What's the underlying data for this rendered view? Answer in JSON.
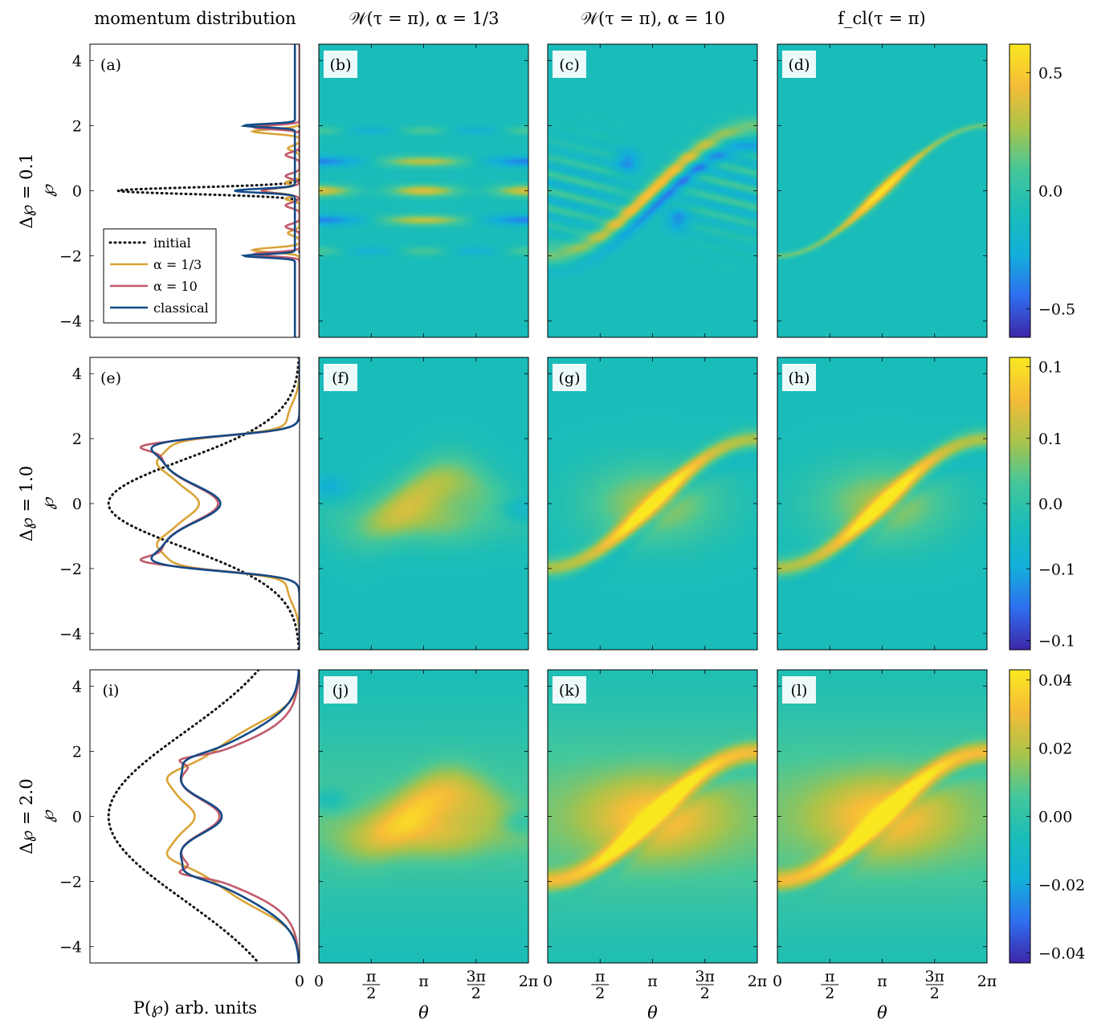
{
  "column_titles": [
    "momentum distribution",
    "𝒲(τ = π),  α = 1/3",
    "𝒲(τ = π),  α = 10",
    "f_cl(τ = π)"
  ],
  "row_labels": [
    "Δ℘ = 0.1",
    "Δ℘ = 1.0",
    "Δ℘ = 2.0"
  ],
  "y_axis_label": "℘",
  "x_axis_label_left": "P(℘) arb. units",
  "x_axis_label_maps": "θ",
  "x_tick_left": "0",
  "x_ticks_theta": [
    "0",
    "π/2",
    "π",
    "3π/2",
    "2π"
  ],
  "y_ticks": [
    "4",
    "2",
    "0",
    "−2",
    "−4"
  ],
  "panel_labels": [
    [
      "(a)",
      "(b)",
      "(c)",
      "(d)"
    ],
    [
      "(e)",
      "(f)",
      "(g)",
      "(h)"
    ],
    [
      "(i)",
      "(j)",
      "(k)",
      "(l)"
    ]
  ],
  "legend": {
    "entries": [
      {
        "label": "initial",
        "color": "#111111",
        "style": "dotted"
      },
      {
        "label": "α = 1/3",
        "color": "#d9a437",
        "style": "solid"
      },
      {
        "label": "α = 10",
        "color": "#c15b6b",
        "style": "solid"
      },
      {
        "label": "classical",
        "color": "#144a86",
        "style": "solid"
      }
    ]
  },
  "colorbars": [
    {
      "ticks": [
        "0.5",
        "0.0",
        "−0.5"
      ],
      "tick_values": [
        0.5,
        0.0,
        -0.5
      ],
      "range": [
        -0.62,
        0.62
      ]
    },
    {
      "ticks": [
        "0.1",
        "0.1",
        "0.0",
        "−0.1",
        "−0.1"
      ],
      "tick_values": [
        0.105,
        0.05,
        0.0,
        -0.05,
        -0.105
      ],
      "range": [
        -0.112,
        0.112
      ]
    },
    {
      "ticks": [
        "0.04",
        "0.02",
        "0.00",
        "−0.02",
        "−0.04"
      ],
      "tick_values": [
        0.04,
        0.02,
        0.0,
        -0.02,
        -0.04
      ],
      "range": [
        -0.043,
        0.043
      ]
    }
  ],
  "colormap": [
    "#3d26a8",
    "#2f6ff0",
    "#12b0d9",
    "#1bbdb8",
    "#45c79a",
    "#aac34a",
    "#f6bc38",
    "#f9e820"
  ],
  "chart_data": {
    "type": "heatmap",
    "layout": "3x4 grid of panels",
    "y_range": [
      -4.5,
      4.5
    ],
    "theta_range": [
      0,
      6.2832
    ],
    "rows": [
      {
        "delta_p": 0.1,
        "momentum_distribution": [
          {
            "name": "initial",
            "x": [
              0,
              0.78
            ],
            "y": [
              0,
              0
            ]
          },
          {
            "name": "α = 1/3",
            "peaks_at": [
              -1.85,
              0,
              1.85
            ],
            "max_amplitude": 0.22
          },
          {
            "name": "α = 10",
            "peaks_at": [
              -1.95,
              -0.7,
              0,
              0.7,
              1.95
            ],
            "max_amplitude": 0.2
          },
          {
            "name": "classical",
            "peaks_at": [
              -2,
              0,
              2
            ],
            "max_amplitude": 0.26
          }
        ]
      },
      {
        "delta_p": 1.0,
        "momentum_distribution": [
          {
            "name": "initial",
            "peak_p": 0,
            "peak_amplitude": 0.82
          },
          {
            "name": "α = 1/3",
            "peak_amplitude": 0.53
          },
          {
            "name": "α = 10",
            "peak_amplitude": 0.59
          },
          {
            "name": "classical",
            "peak_amplitude": 0.59
          }
        ]
      },
      {
        "delta_p": 2.0,
        "momentum_distribution": [
          {
            "name": "initial",
            "peak_p": 0,
            "peak_amplitude": 0.82
          },
          {
            "name": "α = 1/3",
            "peak_amplitude": 0.72
          },
          {
            "name": "α = 10",
            "peak_amplitude": 0.74
          },
          {
            "name": "classical",
            "peak_amplitude": 0.74
          }
        ]
      }
    ]
  }
}
